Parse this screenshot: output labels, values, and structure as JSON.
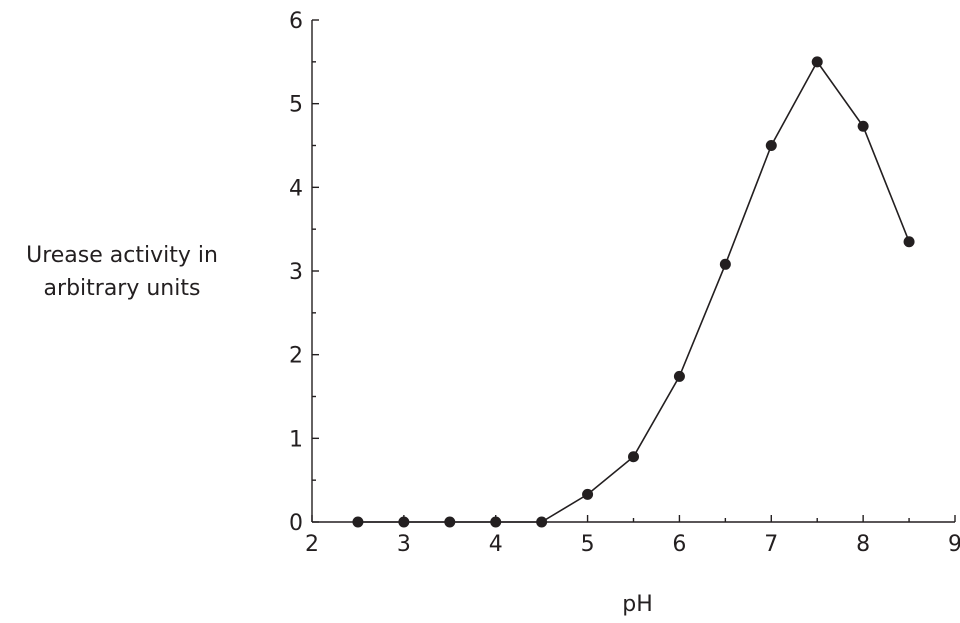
{
  "chart_data": {
    "type": "line",
    "xlabel": "pH",
    "ylabel_lines": [
      "Urease activity in",
      "arbitrary units"
    ],
    "xlim": [
      2,
      9
    ],
    "ylim": [
      0,
      6
    ],
    "x_ticks": [
      "2",
      "3",
      "4",
      "5",
      "6",
      "7",
      "8",
      "9"
    ],
    "y_ticks": [
      "0",
      "1",
      "2",
      "3",
      "4",
      "5",
      "6"
    ],
    "grid": false,
    "series": [
      {
        "x": [
          2.5,
          3.0,
          3.5,
          4.0,
          4.5,
          5.0,
          5.5,
          6.0,
          6.5,
          7.0,
          7.5,
          8.0,
          8.5
        ],
        "y": [
          0,
          0,
          0,
          0,
          0,
          0.33,
          0.78,
          1.74,
          3.08,
          4.5,
          5.5,
          4.73,
          3.35
        ]
      }
    ]
  }
}
